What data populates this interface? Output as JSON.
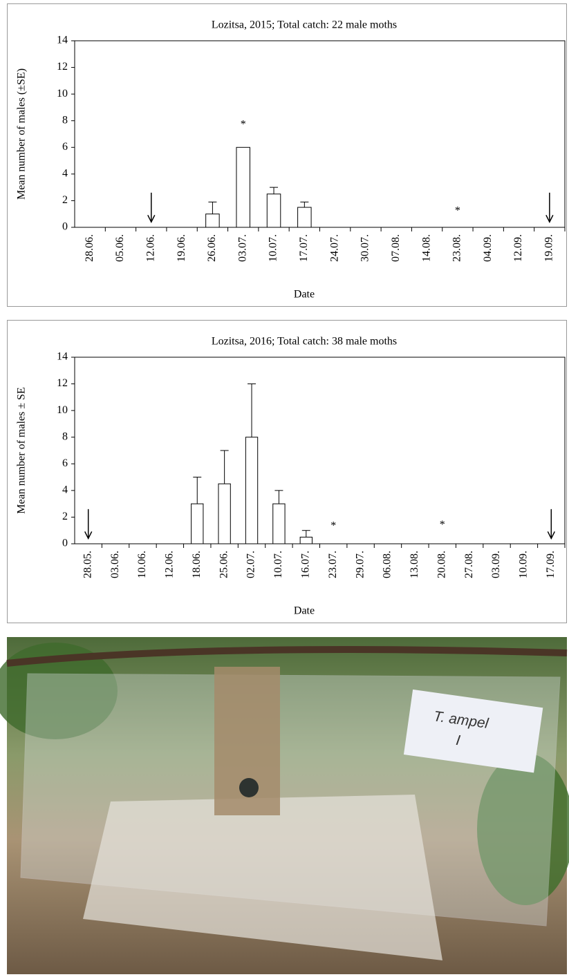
{
  "chart_data": [
    {
      "type": "bar",
      "title": "Lozitsa,  2015; Total catch: 22 male moths",
      "x_label": "Date",
      "y_label": "Mean number of males  (±SE)",
      "categories": [
        "28.06.",
        "05.06.",
        "12.06.",
        "19.06.",
        "26.06.",
        "03.07.",
        "10.07.",
        "17.07.",
        "24.07.",
        "30.07.",
        "07.08.",
        "14.08.",
        "23.08.",
        "04.09.",
        "12.09.",
        "19.09."
      ],
      "values": [
        0,
        0,
        0,
        0,
        1,
        6,
        2.5,
        1.5,
        0,
        0,
        0,
        0,
        0,
        0,
        0,
        0
      ],
      "errors": [
        0,
        0,
        0,
        0,
        0.9,
        0,
        0.5,
        0.4,
        0,
        0,
        0,
        0,
        0,
        0,
        0,
        0
      ],
      "color": "#ffffff",
      "ylim": [
        0,
        14
      ],
      "yticks": [
        0,
        2,
        4,
        6,
        8,
        10,
        12,
        14
      ],
      "annotations": [
        {
          "text": "*",
          "category": "03.07.",
          "y": 7.9
        },
        {
          "text": "*",
          "category": "23.08.",
          "y": 1.4
        }
      ],
      "arrows": [
        {
          "category": "12.06."
        },
        {
          "category": "19.09."
        }
      ]
    },
    {
      "type": "bar",
      "title": "Lozitsa,  2016; Total catch: 38 male moths",
      "x_label": "Date",
      "y_label": "Mean number of males ± SE",
      "categories": [
        "28.05.",
        "03.06.",
        "10.06.",
        "12.06.",
        "18.06.",
        "25.06.",
        "02.07.",
        "10.07.",
        "16.07.",
        "23.07.",
        "29.07.",
        "06.08.",
        "13.08.",
        "20.08.",
        "27.08.",
        "03.09.",
        "10.09.",
        "17.09."
      ],
      "values": [
        0,
        0,
        0,
        0,
        3,
        4.5,
        8,
        3,
        0.5,
        0,
        0,
        0,
        0,
        0,
        0,
        0,
        0,
        0
      ],
      "errors": [
        0,
        0,
        0,
        0,
        2,
        2.5,
        4,
        1,
        0.5,
        0,
        0,
        0,
        0,
        0,
        0,
        0,
        0,
        0
      ],
      "color": "#ffffff",
      "ylim": [
        0,
        14
      ],
      "yticks": [
        0,
        2,
        4,
        6,
        8,
        10,
        12,
        14
      ],
      "annotations": [
        {
          "text": "*",
          "category": "23.07.",
          "y": 1.5
        },
        {
          "text": "*",
          "category": "20.08.",
          "y": 1.6
        }
      ],
      "arrows": [
        {
          "category": "28.05."
        },
        {
          "category": "17.09."
        }
      ]
    }
  ],
  "photo": {
    "label_lines": [
      "T. ampel",
      "I"
    ]
  }
}
